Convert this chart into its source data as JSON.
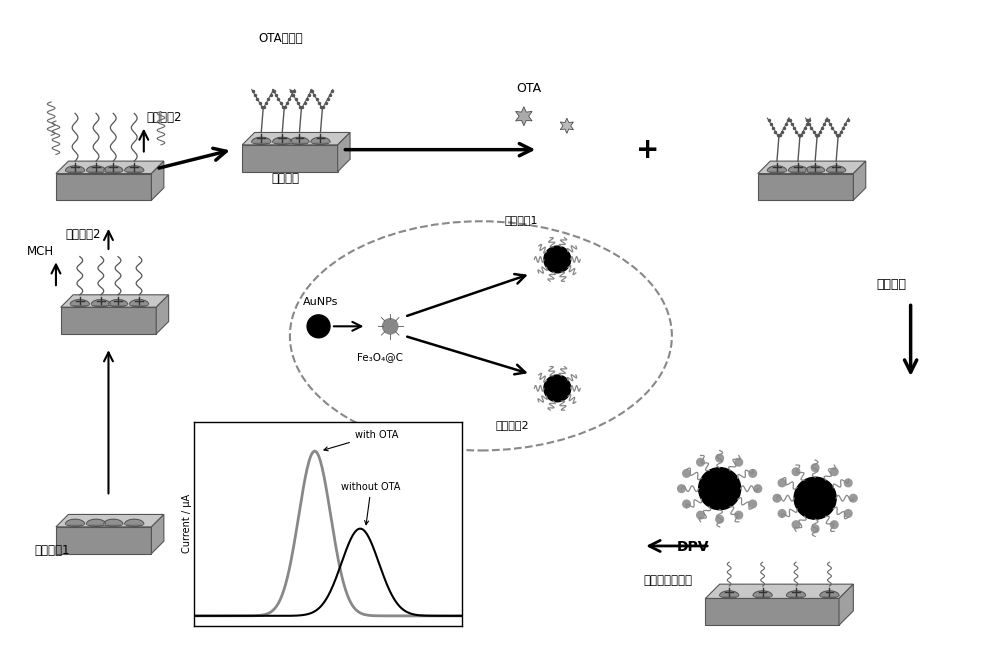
{
  "bg_color": "#ffffff",
  "text_color": "#000000",
  "gray_color": "#888888",
  "light_gray": "#c8c8c8",
  "dark_gray": "#555555",
  "labels": {
    "ota_aptamer": "OTA适配体",
    "working_electrode": "工作电极",
    "capture_probe2": "捕获探针2",
    "mch": "MCH",
    "aunps": "AuNPs",
    "fe3o4": "Fe₃O₄@C",
    "signal_probe1": "信号探针1",
    "signal_probe2": "信号探针2",
    "signal_probe": "信号探针",
    "ota": "OTA",
    "capture_probe1": "捕获探针1",
    "dpv": "DPV",
    "diff_pulse": "差分脉冲伏安法",
    "with_ota": "with OTA",
    "without_ota": "without OTA",
    "current": "Current / μA"
  },
  "figsize": [
    10.0,
    6.66
  ],
  "dpi": 100
}
